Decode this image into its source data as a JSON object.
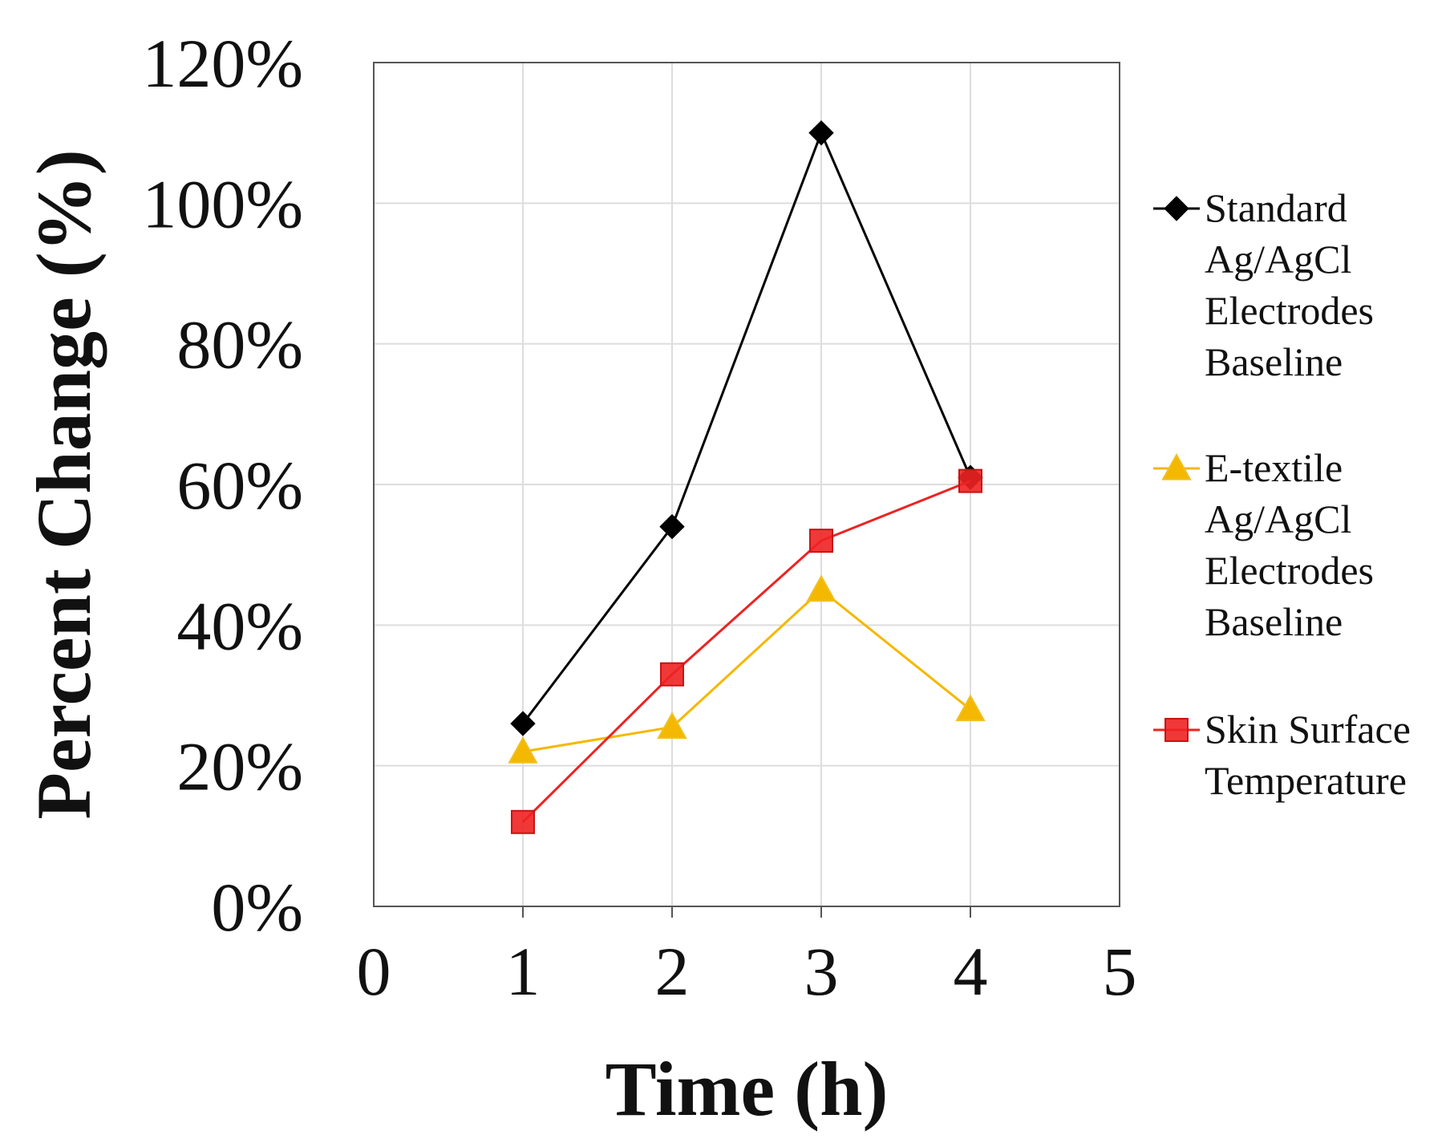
{
  "chart_data": {
    "type": "line",
    "title": "",
    "xlabel": "Time (h)",
    "ylabel": "Percent Change (%)",
    "xlim": [
      0,
      5
    ],
    "ylim": [
      0,
      120
    ],
    "xticks": [
      "0",
      "1",
      "2",
      "3",
      "4",
      "5"
    ],
    "yticks": [
      "0%",
      "20%",
      "40%",
      "60%",
      "80%",
      "100%",
      "120%"
    ],
    "grid": true,
    "legend_position": "right",
    "x": [
      1,
      2,
      3,
      4
    ],
    "series": [
      {
        "name": "Standard Ag/AgCl Electrodes Baseline",
        "legend_lines": [
          "Standard",
          "Ag/AgCl",
          "Electrodes",
          "Baseline"
        ],
        "color": "#000000",
        "marker": "diamond",
        "values": [
          26,
          54,
          110,
          61
        ]
      },
      {
        "name": "E-textile Ag/AgCl Electrodes Baseline",
        "legend_lines": [
          "E-textile",
          "Ag/AgCl",
          "Electrodes",
          "Baseline"
        ],
        "color": "#f5b800",
        "marker": "triangle",
        "values": [
          22,
          25.5,
          45,
          28
        ]
      },
      {
        "name": "Skin Surface Temperature",
        "legend_lines": [
          "Skin Surface",
          "Temperature"
        ],
        "color": "#ee2222",
        "marker": "square",
        "values": [
          12,
          33,
          52,
          60.5
        ]
      }
    ]
  }
}
